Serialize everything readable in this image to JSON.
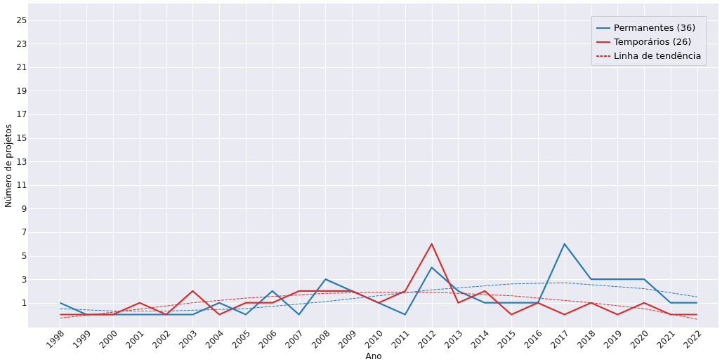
{
  "chart_data": {
    "type": "line",
    "xlabel": "Ano",
    "ylabel": "Número de projetos",
    "x": [
      1998,
      1999,
      2000,
      2001,
      2002,
      2003,
      2004,
      2005,
      2006,
      2007,
      2008,
      2009,
      2010,
      2011,
      2012,
      2013,
      2014,
      2015,
      2016,
      2017,
      2018,
      2019,
      2020,
      2021,
      2022
    ],
    "series": [
      {
        "name": "Permanentes (36)",
        "color": "#2a7ab4",
        "line_style": "solid",
        "values": [
          1,
          0,
          0,
          0,
          0,
          0,
          1,
          0,
          2,
          0,
          3,
          2,
          1,
          0,
          4,
          2,
          1,
          1,
          1,
          6,
          3,
          3,
          3,
          1,
          1
        ]
      },
      {
        "name": "Temporários (26)",
        "color": "#d62f2f",
        "line_style": "solid",
        "values": [
          0,
          0,
          0,
          1,
          0,
          2,
          0,
          1,
          1,
          2,
          2,
          2,
          1,
          2,
          6,
          1,
          2,
          0,
          1,
          0,
          1,
          0,
          1,
          0,
          0
        ]
      },
      {
        "name": "Linha de tendência",
        "color": "#d62f2f",
        "line_style": "dashed",
        "x": [
          1998,
          2000,
          2003,
          2005,
          2008,
          2010,
          2012,
          2015,
          2018,
          2020,
          2022
        ],
        "values": [
          -0.3,
          0.2,
          1.0,
          1.4,
          1.8,
          1.9,
          1.9,
          1.6,
          1.0,
          0.5,
          -0.4
        ]
      },
      {
        "color": "#2a7ab4",
        "line_style": "dashed",
        "x": [
          1998,
          2000,
          2002,
          2005,
          2008,
          2010,
          2012,
          2015,
          2017,
          2020,
          2022
        ],
        "values": [
          0.5,
          0.3,
          0.3,
          0.5,
          1.1,
          1.6,
          2.1,
          2.6,
          2.7,
          2.2,
          1.5
        ]
      }
    ],
    "xlim": [
      1996.8,
      2022.8
    ],
    "xticks": [
      1998,
      1999,
      2000,
      2001,
      2002,
      2003,
      2004,
      2005,
      2006,
      2007,
      2008,
      2009,
      2010,
      2011,
      2012,
      2013,
      2014,
      2015,
      2016,
      2017,
      2018,
      2019,
      2020,
      2021,
      2022
    ],
    "ylim": [
      -1.1,
      26.4
    ],
    "yticks": [
      1,
      3,
      5,
      7,
      9,
      11,
      13,
      15,
      17,
      19,
      21,
      23,
      25
    ],
    "grid": true,
    "legend": "top right",
    "marker": "none"
  }
}
